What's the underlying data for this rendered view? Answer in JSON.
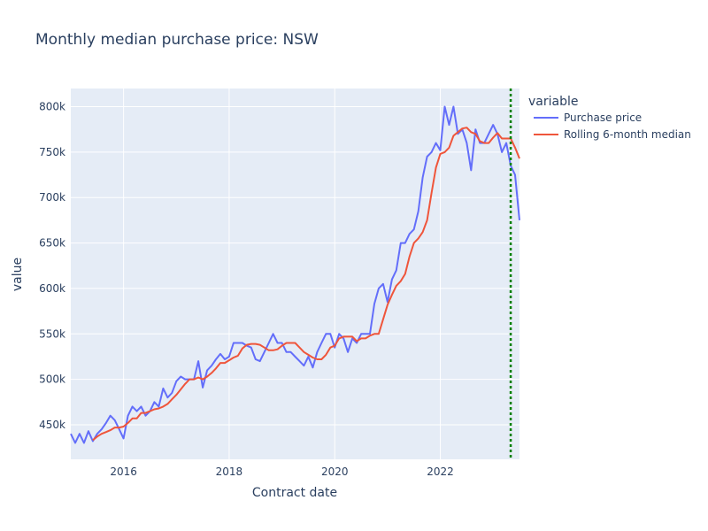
{
  "chart_data": {
    "type": "line",
    "title": "Monthly median purchase price: NSW",
    "xlabel": "Contract date",
    "ylabel": "value",
    "legend_title": "variable",
    "x_range": [
      "2015-01",
      "2023-07"
    ],
    "ylim": [
      412000,
      820000
    ],
    "x_ticks": [
      {
        "value": "2016-01",
        "label": "2016"
      },
      {
        "value": "2018-01",
        "label": "2018"
      },
      {
        "value": "2020-01",
        "label": "2020"
      },
      {
        "value": "2022-01",
        "label": "2022"
      }
    ],
    "y_ticks": [
      {
        "value": 450000,
        "label": "450k"
      },
      {
        "value": 500000,
        "label": "500k"
      },
      {
        "value": 550000,
        "label": "550k"
      },
      {
        "value": 600000,
        "label": "600k"
      },
      {
        "value": 650000,
        "label": "650k"
      },
      {
        "value": 700000,
        "label": "700k"
      },
      {
        "value": 750000,
        "label": "750k"
      },
      {
        "value": 800000,
        "label": "800k"
      }
    ],
    "vertical_line": {
      "x": "2023-05",
      "color": "#008000",
      "style": "dotted"
    },
    "plot_bgcolor": "#E5ECF6",
    "grid": true,
    "legend_position": "right",
    "x": [
      "2015-01",
      "2015-02",
      "2015-03",
      "2015-04",
      "2015-05",
      "2015-06",
      "2015-07",
      "2015-08",
      "2015-09",
      "2015-10",
      "2015-11",
      "2015-12",
      "2016-01",
      "2016-02",
      "2016-03",
      "2016-04",
      "2016-05",
      "2016-06",
      "2016-07",
      "2016-08",
      "2016-09",
      "2016-10",
      "2016-11",
      "2016-12",
      "2017-01",
      "2017-02",
      "2017-03",
      "2017-04",
      "2017-05",
      "2017-06",
      "2017-07",
      "2017-08",
      "2017-09",
      "2017-10",
      "2017-11",
      "2017-12",
      "2018-01",
      "2018-02",
      "2018-03",
      "2018-04",
      "2018-05",
      "2018-06",
      "2018-07",
      "2018-08",
      "2018-09",
      "2018-10",
      "2018-11",
      "2018-12",
      "2019-01",
      "2019-02",
      "2019-03",
      "2019-04",
      "2019-05",
      "2019-06",
      "2019-07",
      "2019-08",
      "2019-09",
      "2019-10",
      "2019-11",
      "2019-12",
      "2020-01",
      "2020-02",
      "2020-03",
      "2020-04",
      "2020-05",
      "2020-06",
      "2020-07",
      "2020-08",
      "2020-09",
      "2020-10",
      "2020-11",
      "2020-12",
      "2021-01",
      "2021-02",
      "2021-03",
      "2021-04",
      "2021-05",
      "2021-06",
      "2021-07",
      "2021-08",
      "2021-09",
      "2021-10",
      "2021-11",
      "2021-12",
      "2022-01",
      "2022-02",
      "2022-03",
      "2022-04",
      "2022-05",
      "2022-06",
      "2022-07",
      "2022-08",
      "2022-09",
      "2022-10",
      "2022-11",
      "2022-12",
      "2023-01",
      "2023-02",
      "2023-03",
      "2023-04",
      "2023-05",
      "2023-06",
      "2023-07"
    ],
    "series": [
      {
        "name": "Purchase price",
        "color": "#636EFA",
        "values": [
          440000,
          430000,
          440000,
          430000,
          443000,
          432000,
          440000,
          445000,
          452000,
          460000,
          455000,
          445000,
          435000,
          460000,
          470000,
          465000,
          470000,
          460000,
          465000,
          475000,
          470000,
          490000,
          480000,
          485000,
          498000,
          503000,
          500000,
          500000,
          500000,
          520000,
          491000,
          510000,
          515000,
          522000,
          528000,
          522000,
          525000,
          540000,
          540000,
          540000,
          537000,
          535000,
          522000,
          520000,
          530000,
          540000,
          550000,
          540000,
          540000,
          530000,
          530000,
          525000,
          520000,
          515000,
          525000,
          513000,
          530000,
          540000,
          550000,
          550000,
          535000,
          550000,
          545000,
          530000,
          545000,
          540000,
          550000,
          550000,
          550000,
          583000,
          600000,
          605000,
          585000,
          610000,
          620000,
          650000,
          650000,
          660000,
          665000,
          685000,
          722000,
          745000,
          750000,
          760000,
          752000,
          800000,
          780000,
          800000,
          770000,
          775000,
          760000,
          730000,
          775000,
          760000,
          760000,
          770000,
          780000,
          770000,
          750000,
          760000,
          735000,
          725000,
          675000
        ]
      },
      {
        "name": "Rolling 6-month median",
        "color": "#EF553B",
        "values": [
          null,
          null,
          null,
          null,
          null,
          433000,
          437000,
          440000,
          442000,
          444000,
          447000,
          447000,
          448000,
          452000,
          457000,
          457000,
          463000,
          463000,
          465000,
          467000,
          468000,
          470000,
          473000,
          478000,
          483000,
          489000,
          495000,
          500000,
          500000,
          502000,
          500000,
          503000,
          507000,
          512000,
          518000,
          518000,
          521000,
          524000,
          526000,
          534000,
          538000,
          539000,
          539000,
          538000,
          535000,
          532000,
          532000,
          533000,
          537000,
          540000,
          540000,
          540000,
          535000,
          530000,
          527000,
          524000,
          522000,
          522000,
          527000,
          535000,
          537000,
          545000,
          547000,
          547000,
          547000,
          542000,
          545000,
          545000,
          548000,
          550000,
          550000,
          566000,
          582000,
          593000,
          603000,
          608000,
          616000,
          635000,
          650000,
          655000,
          662000,
          675000,
          705000,
          733000,
          748000,
          750000,
          755000,
          768000,
          772000,
          776000,
          777000,
          772000,
          770000,
          762000,
          760000,
          760000,
          766000,
          771000,
          765000,
          765000,
          765000,
          755000,
          743000
        ]
      }
    ]
  }
}
